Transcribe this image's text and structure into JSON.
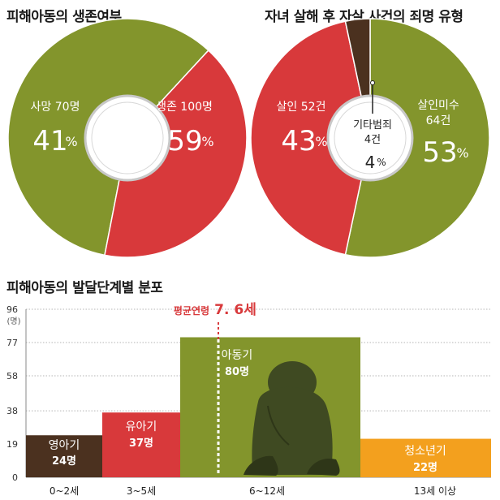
{
  "colors": {
    "red": "#d8393b",
    "green": "#83952c",
    "dark": "#4b311f",
    "charcoal": "#3a2c22",
    "orange": "#f3a01e",
    "mean_line": "#d8393b",
    "figure": "#3f4a22"
  },
  "chart_data": [
    {
      "type": "pie",
      "title": "피해아동의 생존여부",
      "slices": [
        {
          "label": "사망 70명",
          "value": 70,
          "percent": "41%",
          "color": "#d8393b"
        },
        {
          "label": "생존 100명",
          "value": 100,
          "percent": "59%",
          "color": "#83952c"
        }
      ]
    },
    {
      "type": "pie",
      "title": "자녀 살해 후 자살 사건의 죄명 유형",
      "slices": [
        {
          "label": "살인 52건",
          "value": 52,
          "percent": "43%",
          "color": "#d8393b"
        },
        {
          "label": "살인미수 64건",
          "value": 64,
          "percent": "53%",
          "color": "#83952c"
        },
        {
          "label": "기타범죄 4건",
          "value": 4,
          "percent": "4%",
          "color": "#4b311f"
        }
      ]
    },
    {
      "type": "bar",
      "title": "피해아동의 발달단계별 분포",
      "ylabel": "(명)",
      "ylim": [
        0,
        96
      ],
      "yticks": [
        "0",
        "19",
        "38",
        "58",
        "77",
        "96"
      ],
      "categories": [
        "0~2세",
        "3~5세",
        "6~12세",
        "13세 이상"
      ],
      "bars": [
        {
          "name": "영아기",
          "value": 24,
          "label": "24명",
          "color": "#4b311f"
        },
        {
          "name": "유아기",
          "value": 37,
          "label": "37명",
          "color": "#d8393b"
        },
        {
          "name": "아동기",
          "value": 80,
          "label": "80명",
          "color": "#83952c"
        },
        {
          "name": "청소년기",
          "value": 22,
          "label": "22명",
          "color": "#f3a01e"
        }
      ],
      "mean": {
        "label": "평균연령",
        "value": "7. 6세"
      }
    }
  ]
}
